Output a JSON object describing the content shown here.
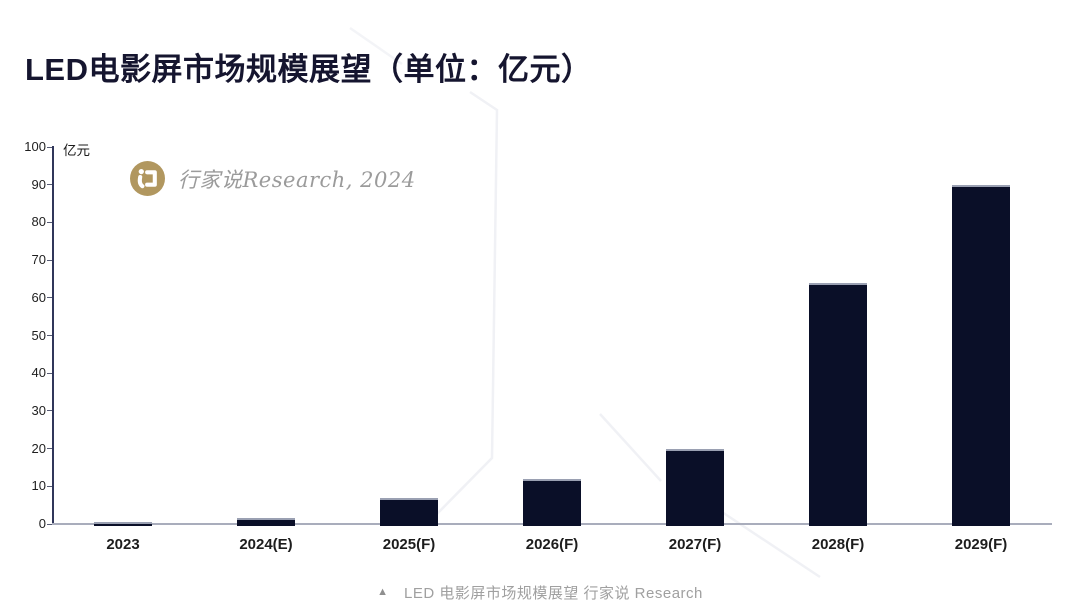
{
  "page": {
    "title": "LED电影屏市场规模展望（单位：亿元）"
  },
  "watermark": {
    "logo_icon": "hangjiashuo-gold-circle-logo",
    "logo_color": "#b1975f",
    "text": "行家说Research, 2024"
  },
  "chart_data": {
    "type": "bar",
    "title": "LED电影屏市场规模展望",
    "unit_label": "亿元",
    "categories": [
      "2023",
      "2024(E)",
      "2025(F)",
      "2026(F)",
      "2027(F)",
      "2028(F)",
      "2029(F)"
    ],
    "values": [
      0.5,
      1.5,
      7,
      12,
      20,
      64,
      90
    ],
    "ylim": [
      0,
      100
    ],
    "ytick_step": 10,
    "grid": false,
    "legend": "none",
    "bar_color": "#0a0f28",
    "y_axis_color": "#30365a",
    "x_axis_color": "#a9adbc"
  },
  "footer": {
    "marker_icon": "triangle-up-icon",
    "marker_glyph": "▲",
    "caption": "LED 电影屏市场规模展望 行家说 Research"
  }
}
